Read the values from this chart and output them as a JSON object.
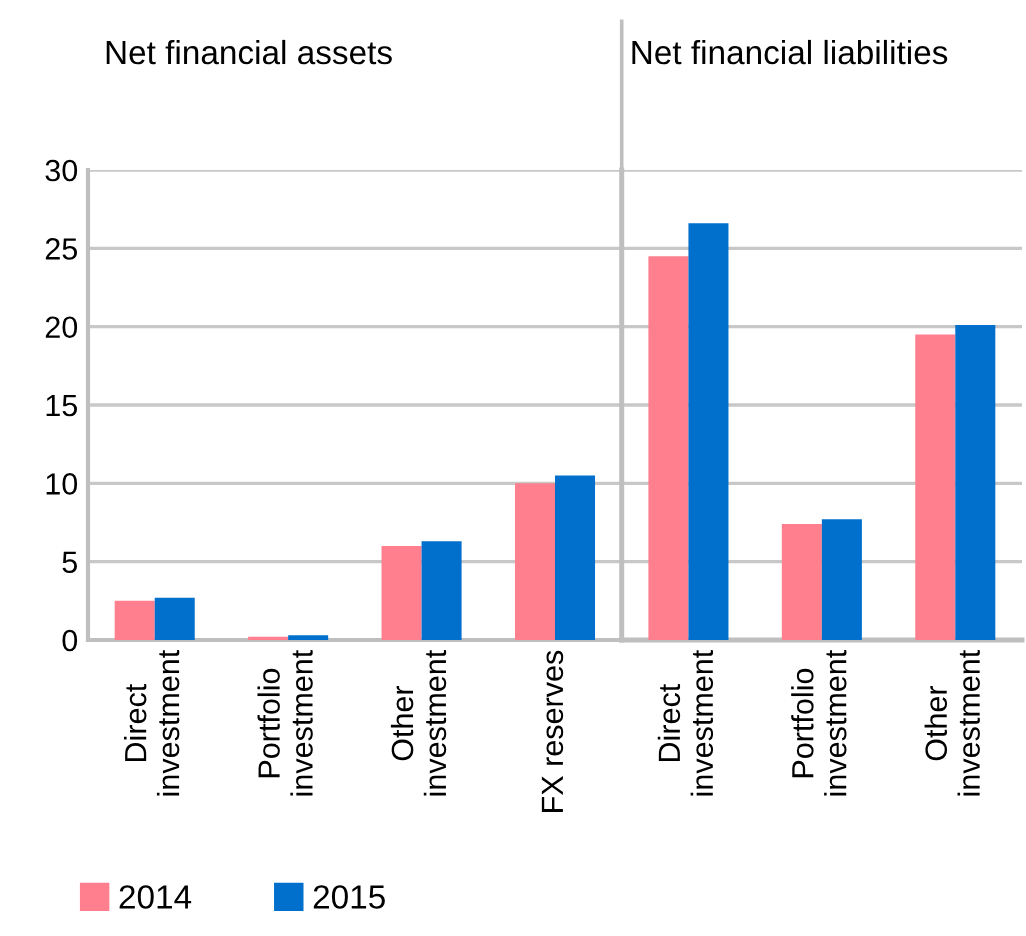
{
  "chart_data": [
    {
      "type": "bar",
      "title": "Net financial assets",
      "categories": [
        "Direct\ninvestment",
        "Portfolio\ninvestment",
        "Other\ninvestment",
        "FX reserves"
      ],
      "series": [
        {
          "name": "2014",
          "color": "#ff7f8e",
          "values": [
            2.5,
            0.2,
            6.0,
            10.0
          ]
        },
        {
          "name": "2015",
          "color": "#0070cc",
          "values": [
            2.7,
            0.3,
            6.3,
            10.5
          ]
        }
      ],
      "ylim": [
        0,
        30
      ],
      "yticks": [
        0,
        5,
        10,
        15,
        20,
        25,
        30
      ],
      "grid": "y",
      "legend": "bottom left"
    },
    {
      "type": "bar",
      "title": "Net financial liabilities",
      "categories": [
        "Direct\ninvestment",
        "Portfolio\ninvestment",
        "Other\ninvestment"
      ],
      "series": [
        {
          "name": "2014",
          "color": "#ff7f8e",
          "values": [
            24.5,
            7.4,
            19.5
          ]
        },
        {
          "name": "2015",
          "color": "#0070cc",
          "values": [
            26.6,
            7.7,
            20.1
          ]
        }
      ],
      "ylim": [
        0,
        30
      ],
      "yticks": [
        0,
        5,
        10,
        15,
        20,
        25,
        30
      ],
      "grid": "y",
      "tick_labels": "x"
    }
  ]
}
